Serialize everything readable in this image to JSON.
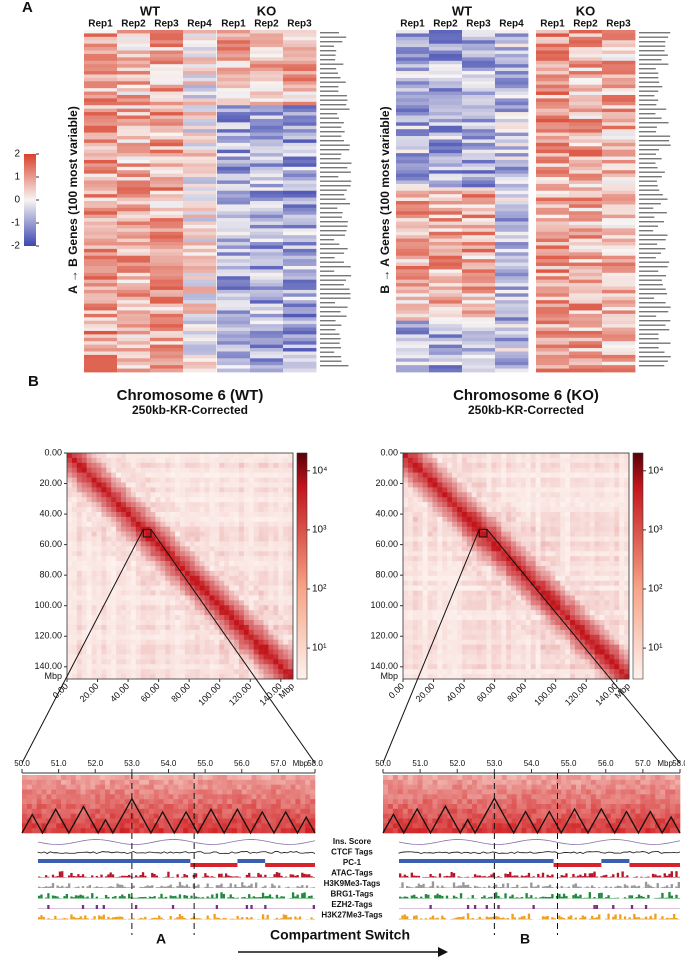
{
  "panel_a": {
    "label": "A",
    "colorbar_ticks": [
      2,
      1,
      0,
      -1,
      -2
    ],
    "heatmaps": [
      {
        "ylabel": "A → B Genes (100 most variable)",
        "groups": [
          {
            "name": "WT",
            "reps": [
              "Rep1",
              "Rep2",
              "Rep3",
              "Rep4"
            ]
          },
          {
            "name": "KO",
            "reps": [
              "Rep1",
              "Rep2",
              "Rep3"
            ]
          }
        ]
      },
      {
        "ylabel": "B → A Genes (100 most variable)",
        "groups": [
          {
            "name": "WT",
            "reps": [
              "Rep1",
              "Rep2",
              "Rep3",
              "Rep4"
            ]
          },
          {
            "name": "KO",
            "reps": [
              "Rep1",
              "Rep2",
              "Rep3"
            ]
          }
        ]
      }
    ]
  },
  "panel_b": {
    "label": "B",
    "maps": [
      {
        "title": "Chromosome 6 (WT)",
        "subtitle": "250kb-KR-Corrected"
      },
      {
        "title": "Chromosome 6 (KO)",
        "subtitle": "250kb-KR-Corrected"
      }
    ],
    "axis_unit": "Mbp",
    "axis_ticks": [
      {
        "value": 0,
        "label": "0.00"
      },
      {
        "value": 20,
        "label": "20.00"
      },
      {
        "value": 40,
        "label": "40.00"
      },
      {
        "value": 60,
        "label": "60.00"
      },
      {
        "value": 80,
        "label": "80.00"
      },
      {
        "value": 100,
        "label": "100.00"
      },
      {
        "value": 120,
        "label": "120.00"
      },
      {
        "value": 140,
        "label": "140.00"
      }
    ],
    "colorbar_ticks": [
      {
        "value": 10000,
        "label": "10⁴"
      },
      {
        "value": 1000,
        "label": "10³"
      },
      {
        "value": 100,
        "label": "10²"
      },
      {
        "value": 10,
        "label": "10¹"
      }
    ],
    "zoom_ticks": [
      {
        "value": 50,
        "label": "50.0"
      },
      {
        "value": 51,
        "label": "51.0"
      },
      {
        "value": 52,
        "label": "52.0"
      },
      {
        "value": 53,
        "label": "53.0"
      },
      {
        "value": 54,
        "label": "54.0"
      },
      {
        "value": 55,
        "label": "55.0"
      },
      {
        "value": 56,
        "label": "56.0"
      },
      {
        "value": 57,
        "label": "57.0"
      },
      {
        "value": 58,
        "label": "58.0"
      }
    ],
    "tracks": [
      "Ins. Score",
      "CTCF Tags",
      "PC-1",
      "ATAC-Tags",
      "H3K9Me3-Tags",
      "BRG1-Tags",
      "EZH2-Tags",
      "H3K27Me3-Tags"
    ],
    "switch": {
      "from": "A",
      "label": "Compartment Switch",
      "to": "B"
    }
  }
}
